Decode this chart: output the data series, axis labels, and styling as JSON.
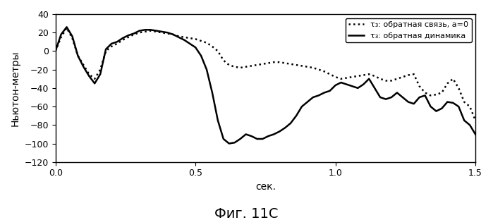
{
  "title": "Фиг. 11С",
  "xlabel": "сек.",
  "ylabel": "Ньютон-метры",
  "xlim": [
    0,
    1.5
  ],
  "ylim": [
    -120,
    40
  ],
  "yticks": [
    -120,
    -100,
    -80,
    -60,
    -40,
    -20,
    0,
    20,
    40
  ],
  "xticks": [
    0,
    0.5,
    1.0,
    1.5
  ],
  "legend_dotted": "τ₃: обратная связь, a=0",
  "legend_solid": "τ₃: обратная динамика",
  "background": "#ffffff",
  "line_color": "#000000",
  "dotted_x": [
    0,
    0.02,
    0.04,
    0.06,
    0.08,
    0.1,
    0.12,
    0.14,
    0.16,
    0.18,
    0.2,
    0.22,
    0.24,
    0.26,
    0.28,
    0.3,
    0.32,
    0.34,
    0.36,
    0.38,
    0.4,
    0.42,
    0.44,
    0.46,
    0.48,
    0.5,
    0.52,
    0.54,
    0.56,
    0.58,
    0.6,
    0.62,
    0.64,
    0.66,
    0.68,
    0.7,
    0.72,
    0.74,
    0.76,
    0.78,
    0.8,
    0.82,
    0.84,
    0.86,
    0.88,
    0.9,
    0.92,
    0.94,
    0.96,
    0.98,
    1.0,
    1.02,
    1.04,
    1.06,
    1.08,
    1.1,
    1.12,
    1.14,
    1.16,
    1.18,
    1.2,
    1.22,
    1.24,
    1.26,
    1.28,
    1.3,
    1.32,
    1.34,
    1.36,
    1.38,
    1.4,
    1.42,
    1.44,
    1.46,
    1.48,
    1.5
  ],
  "dotted_y": [
    0,
    15,
    25,
    14,
    -5,
    -15,
    -25,
    -30,
    -20,
    0,
    5,
    8,
    12,
    15,
    18,
    20,
    21,
    22,
    21,
    20,
    19,
    18,
    16,
    15,
    14,
    13,
    11,
    9,
    5,
    0,
    -10,
    -15,
    -17,
    -18,
    -17,
    -16,
    -15,
    -14,
    -13,
    -12,
    -12,
    -13,
    -14,
    -15,
    -16,
    -17,
    -18,
    -20,
    -22,
    -25,
    -28,
    -30,
    -29,
    -28,
    -27,
    -26,
    -25,
    -27,
    -30,
    -32,
    -32,
    -30,
    -28,
    -26,
    -25,
    -38,
    -45,
    -48,
    -47,
    -45,
    -35,
    -30,
    -40,
    -55,
    -60,
    -75
  ],
  "solid_x": [
    0,
    0.02,
    0.04,
    0.06,
    0.08,
    0.1,
    0.12,
    0.14,
    0.16,
    0.18,
    0.2,
    0.22,
    0.24,
    0.26,
    0.28,
    0.3,
    0.32,
    0.34,
    0.36,
    0.38,
    0.4,
    0.42,
    0.44,
    0.46,
    0.48,
    0.5,
    0.52,
    0.54,
    0.56,
    0.58,
    0.6,
    0.62,
    0.64,
    0.66,
    0.68,
    0.7,
    0.72,
    0.74,
    0.76,
    0.78,
    0.8,
    0.82,
    0.84,
    0.86,
    0.88,
    0.9,
    0.92,
    0.94,
    0.96,
    0.98,
    1.0,
    1.02,
    1.04,
    1.06,
    1.08,
    1.1,
    1.12,
    1.14,
    1.16,
    1.18,
    1.2,
    1.22,
    1.24,
    1.26,
    1.28,
    1.3,
    1.32,
    1.34,
    1.36,
    1.38,
    1.4,
    1.42,
    1.44,
    1.46,
    1.48,
    1.5
  ],
  "solid_y": [
    0,
    18,
    26,
    16,
    -5,
    -17,
    -27,
    -35,
    -25,
    2,
    8,
    10,
    14,
    17,
    19,
    22,
    23,
    23,
    22,
    21,
    20,
    18,
    15,
    12,
    8,
    4,
    -5,
    -20,
    -45,
    -75,
    -95,
    -100,
    -99,
    -95,
    -90,
    -92,
    -95,
    -95,
    -92,
    -90,
    -87,
    -83,
    -78,
    -70,
    -60,
    -55,
    -50,
    -48,
    -45,
    -43,
    -37,
    -34,
    -36,
    -38,
    -40,
    -36,
    -30,
    -40,
    -50,
    -52,
    -50,
    -45,
    -50,
    -55,
    -57,
    -50,
    -48,
    -60,
    -65,
    -62,
    -55,
    -56,
    -60,
    -75,
    -80,
    -90
  ]
}
